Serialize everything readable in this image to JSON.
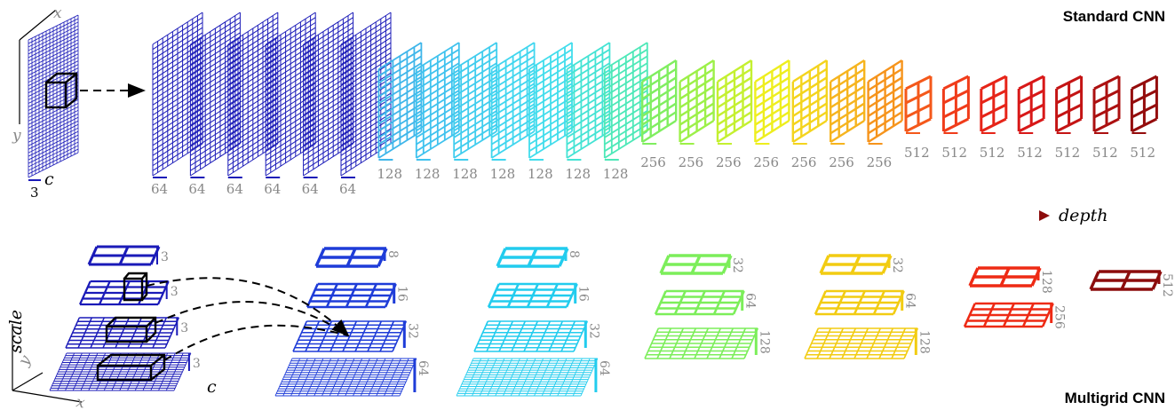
{
  "titles": {
    "standard": "Standard CNN",
    "multigrid": "Multigrid CNN"
  },
  "input": {
    "channels": "3",
    "axis_x": "x",
    "axis_y": "y",
    "axis_c": "c"
  },
  "depth_label": "depth",
  "standard_cnn": {
    "layers": [
      {
        "channels": "64",
        "color": "#1a1ab8",
        "cells": 10
      },
      {
        "channels": "64",
        "color": "#1a1ab8",
        "cells": 10
      },
      {
        "channels": "64",
        "color": "#1a1ab8",
        "cells": 10
      },
      {
        "channels": "64",
        "color": "#1a1ab8",
        "cells": 10
      },
      {
        "channels": "64",
        "color": "#1a1ab8",
        "cells": 10
      },
      {
        "channels": "64",
        "color": "#1a1ab8",
        "cells": 10
      },
      {
        "channels": "128",
        "color": "#3fb6ea",
        "cells": 6
      },
      {
        "channels": "128",
        "color": "#3fc2ee",
        "cells": 6
      },
      {
        "channels": "128",
        "color": "#40cdee",
        "cells": 6
      },
      {
        "channels": "128",
        "color": "#40d6ef",
        "cells": 6
      },
      {
        "channels": "128",
        "color": "#42ddec",
        "cells": 6
      },
      {
        "channels": "128",
        "color": "#44e3d4",
        "cells": 6
      },
      {
        "channels": "128",
        "color": "#4de8b8",
        "cells": 6
      },
      {
        "channels": "256",
        "color": "#80ee60",
        "cells": 4
      },
      {
        "channels": "256",
        "color": "#9cf048",
        "cells": 4
      },
      {
        "channels": "256",
        "color": "#c4f030",
        "cells": 4
      },
      {
        "channels": "256",
        "color": "#eeee1e",
        "cells": 4
      },
      {
        "channels": "256",
        "color": "#f4d41e",
        "cells": 4
      },
      {
        "channels": "256",
        "color": "#f6b41e",
        "cells": 4
      },
      {
        "channels": "256",
        "color": "#f6941c",
        "cells": 4
      },
      {
        "channels": "512",
        "color": "#f4581a",
        "cells": 2
      },
      {
        "channels": "512",
        "color": "#f03c1a",
        "cells": 2
      },
      {
        "channels": "512",
        "color": "#e62418",
        "cells": 2
      },
      {
        "channels": "512",
        "color": "#d81818",
        "cells": 2
      },
      {
        "channels": "512",
        "color": "#c41414",
        "cells": 2
      },
      {
        "channels": "512",
        "color": "#ac1010",
        "cells": 2
      },
      {
        "channels": "512",
        "color": "#940c0c",
        "cells": 2
      }
    ]
  },
  "multigrid_cnn": {
    "input_pyramid": [
      {
        "grid": 2,
        "channels": "3"
      },
      {
        "grid": 4,
        "channels": "3"
      },
      {
        "grid": 8,
        "channels": "3"
      },
      {
        "grid": 16,
        "channels": "3"
      }
    ],
    "input_axes": {
      "scale": "scale",
      "x": "x",
      "y": "y",
      "c": "c"
    },
    "columns": [
      {
        "color": "#1e3cd8",
        "levels": [
          {
            "grid": 2,
            "channels": "8"
          },
          {
            "grid": 4,
            "channels": "16"
          },
          {
            "grid": 8,
            "channels": "32"
          },
          {
            "grid": 16,
            "channels": "64"
          }
        ]
      },
      {
        "color": "#22ccee",
        "levels": [
          {
            "grid": 2,
            "channels": "8"
          },
          {
            "grid": 4,
            "channels": "16"
          },
          {
            "grid": 8,
            "channels": "32"
          },
          {
            "grid": 16,
            "channels": "64"
          }
        ]
      },
      {
        "color": "#7cee5a",
        "levels": [
          {
            "grid": 2,
            "channels": "32"
          },
          {
            "grid": 4,
            "channels": "64"
          },
          {
            "grid": 8,
            "channels": "128"
          }
        ]
      },
      {
        "color": "#f2cc12",
        "levels": [
          {
            "grid": 2,
            "channels": "32"
          },
          {
            "grid": 4,
            "channels": "64"
          },
          {
            "grid": 8,
            "channels": "128"
          }
        ]
      },
      {
        "color": "#ee2a14",
        "levels": [
          {
            "grid": 2,
            "channels": "128"
          },
          {
            "grid": 4,
            "channels": "256"
          }
        ]
      },
      {
        "color": "#8c0c0c",
        "levels": [
          {
            "grid": 2,
            "channels": "512"
          }
        ]
      }
    ]
  }
}
